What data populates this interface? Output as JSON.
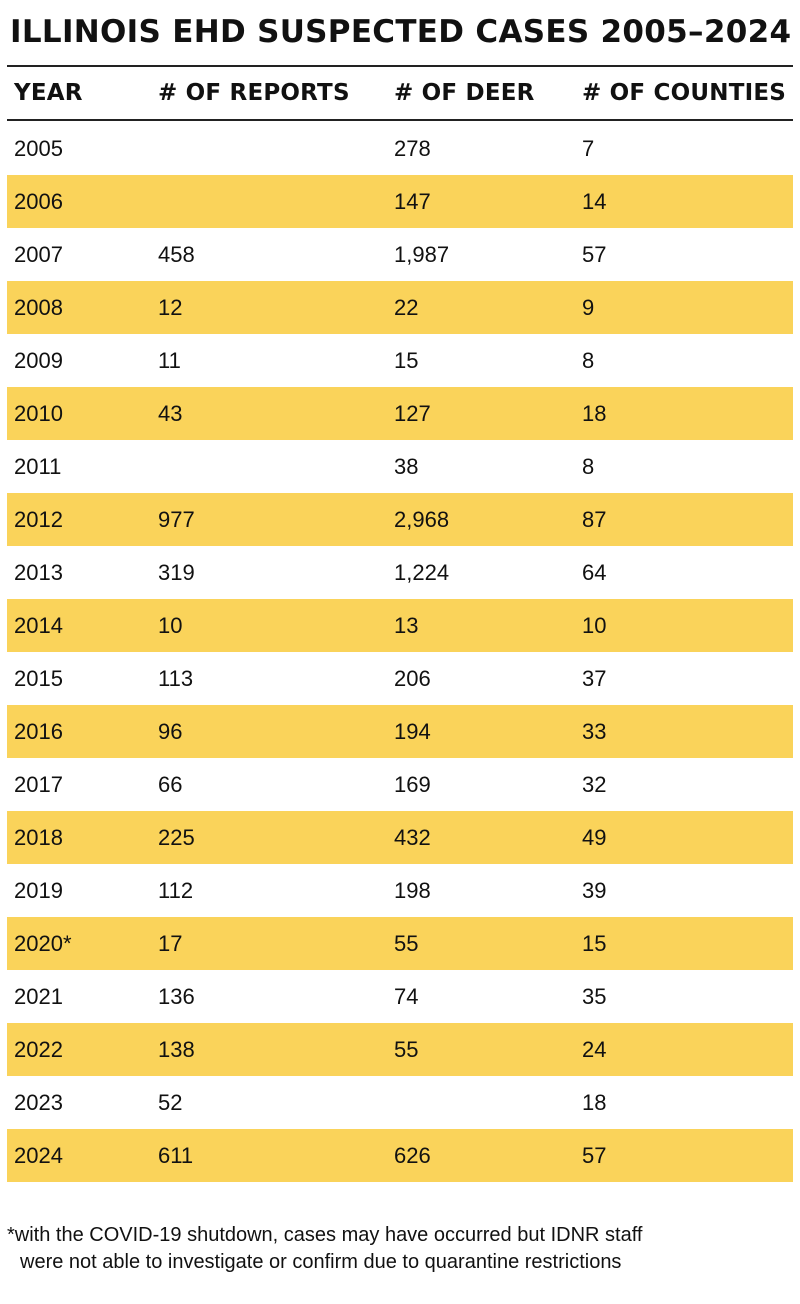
{
  "title": "ILLINOIS EHD SUSPECTED CASES 2005–2024",
  "chart_data": {
    "type": "table",
    "title": "ILLINOIS EHD SUSPECTED CASES 2005–2024",
    "columns": [
      "YEAR",
      "# OF REPORTS",
      "# OF DEER",
      "# OF COUNTIES"
    ],
    "rows": [
      [
        "2005",
        "",
        "278",
        "7"
      ],
      [
        "2006",
        "",
        "147",
        "14"
      ],
      [
        "2007",
        "458",
        "1,987",
        "57"
      ],
      [
        "2008",
        "12",
        "22",
        "9"
      ],
      [
        "2009",
        "11",
        "15",
        "8"
      ],
      [
        "2010",
        "43",
        "127",
        "18"
      ],
      [
        "2011",
        "",
        "38",
        "8"
      ],
      [
        "2012",
        "977",
        "2,968",
        "87"
      ],
      [
        "2013",
        "319",
        "1,224",
        "64"
      ],
      [
        "2014",
        "10",
        "13",
        "10"
      ],
      [
        "2015",
        "113",
        "206",
        "37"
      ],
      [
        "2016",
        "96",
        "194",
        "33"
      ],
      [
        "2017",
        "66",
        "169",
        "32"
      ],
      [
        "2018",
        "225",
        "432",
        "49"
      ],
      [
        "2019",
        "112",
        "198",
        "39"
      ],
      [
        "2020*",
        "17",
        "55",
        "15"
      ],
      [
        "2021",
        "136",
        "74",
        "35"
      ],
      [
        "2022",
        "138",
        "55",
        "24"
      ],
      [
        "2023",
        "52",
        "",
        "18"
      ],
      [
        "2024",
        "611",
        "626",
        "57"
      ]
    ]
  },
  "footnote": {
    "line1": "*with the COVID-19 shutdown, cases may have occurred but IDNR staff",
    "line2": "were not able to investigate or confirm due to quarantine restrictions"
  },
  "colors": {
    "stripe": "#fad35a",
    "rule": "#222222",
    "text": "#111111"
  }
}
